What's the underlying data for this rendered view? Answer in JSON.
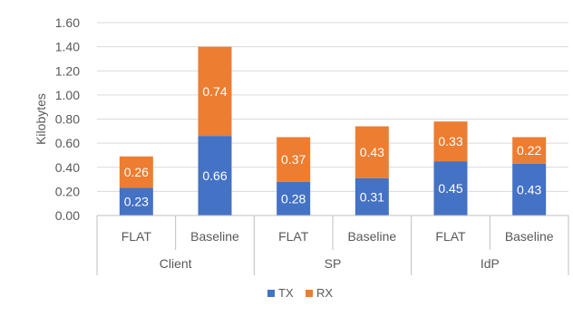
{
  "chart_data": {
    "type": "bar",
    "stacked": true,
    "groups": [
      "Client",
      "SP",
      "IdP"
    ],
    "categories": [
      "FLAT",
      "Baseline",
      "FLAT",
      "Baseline",
      "FLAT",
      "Baseline"
    ],
    "series": [
      {
        "name": "TX",
        "color": "#4472C4",
        "values": [
          0.23,
          0.66,
          0.28,
          0.31,
          0.45,
          0.43
        ]
      },
      {
        "name": "RX",
        "color": "#ED7D31",
        "values": [
          0.26,
          0.74,
          0.37,
          0.43,
          0.33,
          0.22
        ]
      }
    ],
    "ylabel": "Kilobytes",
    "ylim": [
      0,
      1.6
    ],
    "yticks": [
      "0.00",
      "0.20",
      "0.40",
      "0.60",
      "0.80",
      "1.00",
      "1.20",
      "1.40",
      "1.60"
    ],
    "grid": true,
    "legend_position": "bottom"
  }
}
